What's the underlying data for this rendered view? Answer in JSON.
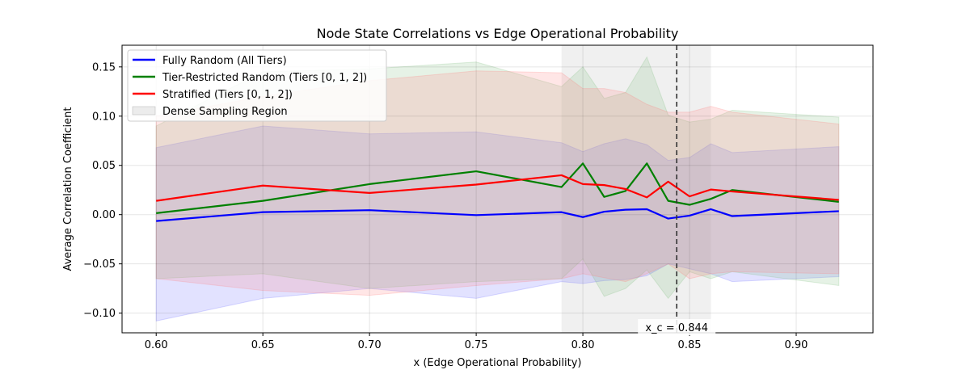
{
  "chart_data": {
    "type": "line",
    "title": "Node State Correlations vs Edge Operational Probability",
    "xlabel": "x (Edge Operational Probability)",
    "ylabel": "Average Correlation Coefficient",
    "xlim": [
      0.584,
      0.936
    ],
    "ylim": [
      -0.12,
      0.172
    ],
    "xticks": [
      0.6,
      0.65,
      0.7,
      0.75,
      0.8,
      0.85,
      0.9
    ],
    "xtick_labels": [
      "0.60",
      "0.65",
      "0.70",
      "0.75",
      "0.80",
      "0.85",
      "0.90"
    ],
    "yticks": [
      -0.1,
      -0.05,
      0.0,
      0.05,
      0.1,
      0.15
    ],
    "ytick_labels": [
      "−0.10",
      "−0.05",
      "0.00",
      "0.05",
      "0.10",
      "0.15"
    ],
    "grid": true,
    "legend_position": "top-left",
    "dense_region": {
      "label": "Dense Sampling Region",
      "x0": 0.79,
      "x1": 0.86,
      "color": "#d9d9d9"
    },
    "critical_line": {
      "x": 0.844,
      "label": "x_c = 0.844"
    },
    "series": [
      {
        "name": "Fully Random (All Tiers)",
        "color": "#0000ff",
        "band_color": "#6f6fff",
        "x": [
          0.6,
          0.65,
          0.7,
          0.75,
          0.79,
          0.8,
          0.81,
          0.82,
          0.83,
          0.84,
          0.85,
          0.86,
          0.87,
          0.92
        ],
        "y": [
          -0.0065,
          0.0025,
          0.0045,
          -0.0005,
          0.0025,
          -0.0025,
          0.003,
          0.005,
          0.0055,
          -0.004,
          -0.001,
          0.0055,
          -0.0015,
          0.0035
        ],
        "lower": [
          -0.108,
          -0.085,
          -0.075,
          -0.085,
          -0.068,
          -0.07,
          -0.067,
          -0.066,
          -0.062,
          -0.05,
          -0.055,
          -0.06,
          -0.068,
          -0.063
        ],
        "upper": [
          0.068,
          0.09,
          0.082,
          0.084,
          0.073,
          0.064,
          0.072,
          0.077,
          0.071,
          0.055,
          0.058,
          0.072,
          0.063,
          0.069
        ]
      },
      {
        "name": "Tier-Restricted Random (Tiers [0, 1, 2])",
        "color": "#008000",
        "band_color": "#80c080",
        "x": [
          0.6,
          0.65,
          0.7,
          0.75,
          0.79,
          0.8,
          0.81,
          0.82,
          0.83,
          0.84,
          0.85,
          0.86,
          0.87,
          0.92
        ],
        "y": [
          0.0015,
          0.014,
          0.031,
          0.044,
          0.028,
          0.052,
          0.018,
          0.024,
          0.052,
          0.014,
          0.01,
          0.016,
          0.025,
          0.013
        ],
        "lower": [
          -0.065,
          -0.06,
          -0.075,
          -0.068,
          -0.065,
          -0.045,
          -0.083,
          -0.075,
          -0.056,
          -0.085,
          -0.058,
          -0.065,
          -0.058,
          -0.072
        ],
        "upper": [
          0.09,
          0.145,
          0.148,
          0.155,
          0.13,
          0.15,
          0.118,
          0.124,
          0.16,
          0.101,
          0.094,
          0.097,
          0.106,
          0.099
        ]
      },
      {
        "name": "Stratified (Tiers [0, 1, 2])",
        "color": "#ff0000",
        "band_color": "#ff8080",
        "x": [
          0.6,
          0.65,
          0.7,
          0.75,
          0.79,
          0.8,
          0.81,
          0.82,
          0.83,
          0.84,
          0.85,
          0.86,
          0.87,
          0.92
        ],
        "y": [
          0.014,
          0.0295,
          0.022,
          0.0305,
          0.04,
          0.031,
          0.03,
          0.026,
          0.0175,
          0.0335,
          0.0185,
          0.0255,
          0.0235,
          0.015
        ],
        "lower": [
          -0.065,
          -0.077,
          -0.082,
          -0.072,
          -0.065,
          -0.06,
          -0.064,
          -0.068,
          -0.06,
          -0.05,
          -0.065,
          -0.06,
          -0.058,
          -0.06
        ],
        "upper": [
          0.1,
          0.12,
          0.136,
          0.146,
          0.144,
          0.128,
          0.128,
          0.124,
          0.112,
          0.104,
          0.104,
          0.11,
          0.104,
          0.092
        ]
      }
    ]
  }
}
